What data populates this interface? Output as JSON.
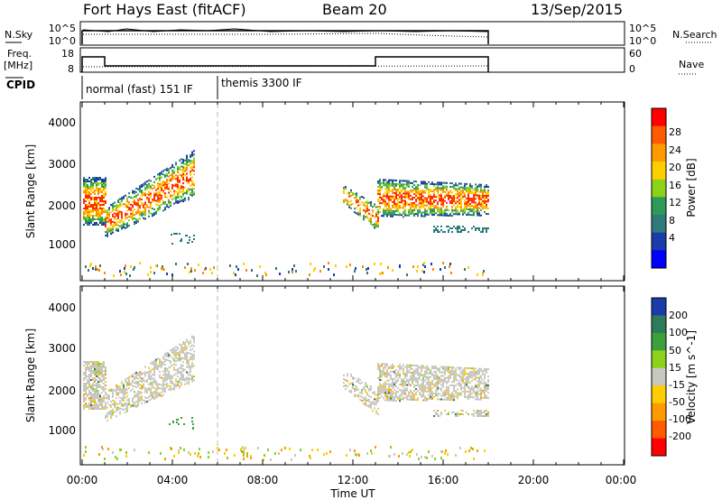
{
  "header": {
    "station": "Fort Hays East (fitACF)",
    "beam": "Beam 20",
    "date": "13/Sep/2015"
  },
  "strips": {
    "nsky_label": "N.Sky",
    "nsearch_label": "N.Search",
    "freq_label_1": "Freq.",
    "freq_label_2": "[MHz]",
    "nave_label": "Nave",
    "cpid_label": "CPID",
    "noise_ticks": [
      "10^5",
      "10^0"
    ],
    "noise_ticks_right": [
      "10^5",
      "10^0"
    ],
    "freq_ticks": [
      "18",
      "8"
    ],
    "nave_ticks": [
      "60",
      "0"
    ],
    "cpid_segments": [
      {
        "label": "normal (fast) 151 IF",
        "start_h": 0,
        "end_h": 6
      },
      {
        "label": "themis 3300 IF",
        "start_h": 6,
        "end_h": 18
      }
    ]
  },
  "chart_data": [
    {
      "type": "heatmap",
      "panel": "power",
      "xlabel": "",
      "ylabel": "Slant Range [km]",
      "x_range_h": [
        0,
        24
      ],
      "ylim": [
        180,
        4600
      ],
      "yticks": [
        "4000",
        "3000",
        "2000",
        "1000"
      ],
      "colorbar": {
        "label": "Power [dB]",
        "ticks": [
          "28",
          "24",
          "20",
          "16",
          "12",
          "8",
          "4"
        ],
        "colors": [
          "#ff0000",
          "#ff5a00",
          "#ff9a00",
          "#ffce00",
          "#8cd21a",
          "#2e9a5a",
          "#2d7a7a",
          "#1a3ca8",
          "#0000ff"
        ]
      }
    },
    {
      "type": "heatmap",
      "panel": "velocity",
      "xlabel": "Time UT",
      "ylabel": "Slant Range [km]",
      "x_range_h": [
        0,
        24
      ],
      "ylim": [
        180,
        4600
      ],
      "yticks": [
        "4000",
        "3000",
        "2000",
        "1000"
      ],
      "xticks": [
        "00:00",
        "04:00",
        "08:00",
        "12:00",
        "16:00",
        "20:00",
        "00:00"
      ],
      "colorbar": {
        "label": "Velocity [m s^-1]",
        "ticks": [
          "200",
          "100",
          "50",
          "15",
          "-15",
          "-50",
          "-100",
          "-200"
        ],
        "colors": [
          "#1a3ca8",
          "#2e7a5a",
          "#3ca03c",
          "#8cd21a",
          "#c8c8c0",
          "#ffce00",
          "#ff9a00",
          "#ff5a00",
          "#ff0000"
        ]
      }
    }
  ]
}
